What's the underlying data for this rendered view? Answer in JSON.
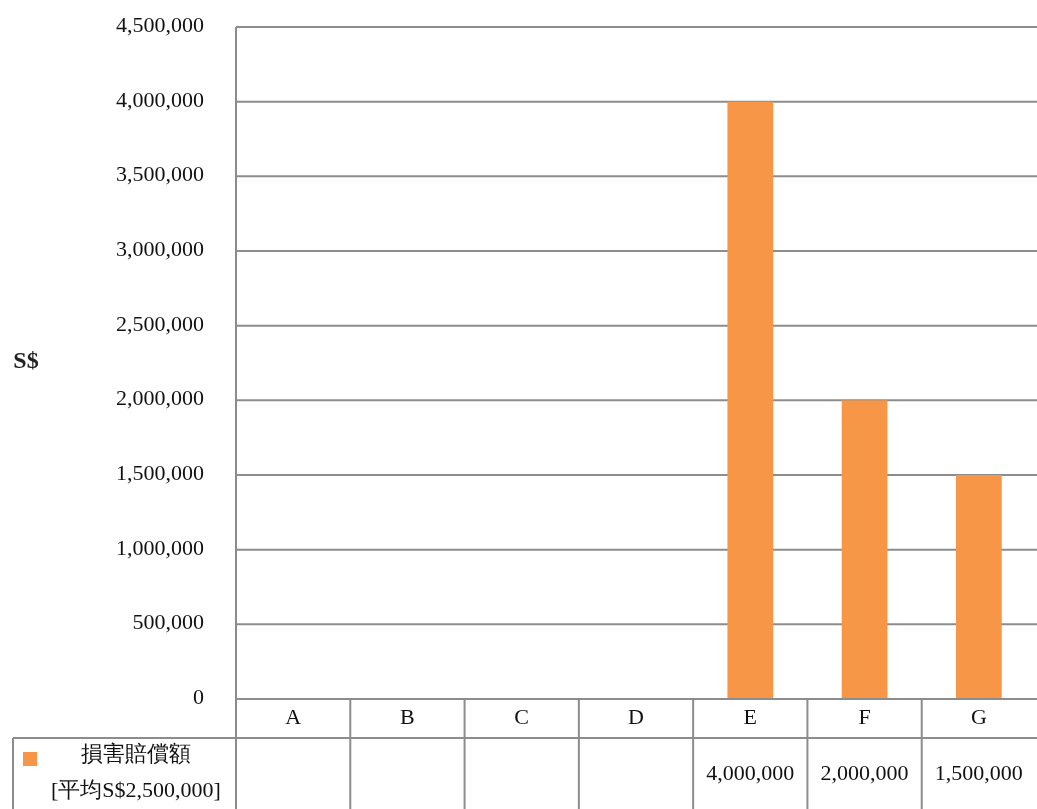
{
  "chart_data": {
    "type": "bar",
    "ylabel": "S$",
    "categories": [
      "A",
      "B",
      "C",
      "D",
      "E",
      "F",
      "G"
    ],
    "series": [
      {
        "name": "損害賠償額 [平均S$2,500,000]",
        "color": "#f79646",
        "values": [
          null,
          null,
          null,
          null,
          4000000,
          2000000,
          1500000
        ],
        "value_labels": [
          null,
          null,
          null,
          null,
          "4,000,000",
          "2,000,000",
          "1,500,000"
        ]
      }
    ],
    "ylim": [
      0,
      4500000
    ],
    "yticks": [
      {
        "value": 0,
        "label": "0"
      },
      {
        "value": 500000,
        "label": "500,000"
      },
      {
        "value": 1000000,
        "label": "1,000,000"
      },
      {
        "value": 1500000,
        "label": "1,500,000"
      },
      {
        "value": 2000000,
        "label": "2,000,000"
      },
      {
        "value": 2500000,
        "label": "2,500,000"
      },
      {
        "value": 3000000,
        "label": "3,000,000"
      },
      {
        "value": 3500000,
        "label": "3,500,000"
      },
      {
        "value": 4000000,
        "label": "4,000,000"
      },
      {
        "value": 4500000,
        "label": "4,500,000"
      }
    ],
    "grid": "y",
    "legend": "bottom"
  }
}
